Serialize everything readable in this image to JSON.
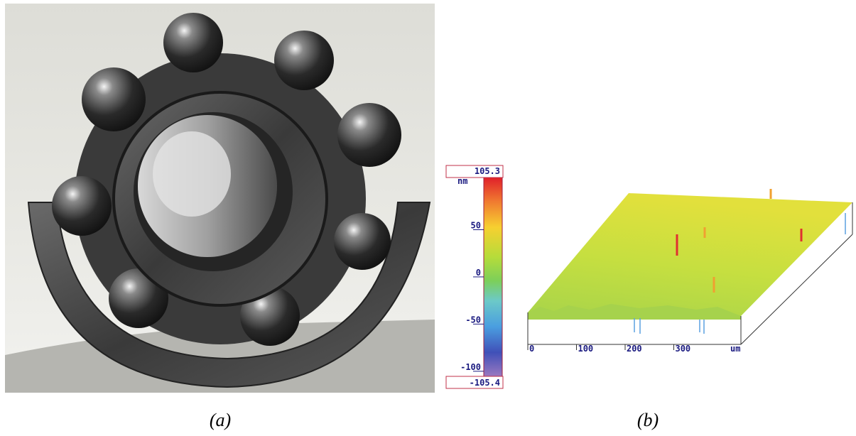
{
  "panel_a": {
    "caption": "(a)"
  },
  "panel_b": {
    "caption": "(b)",
    "colorbar": {
      "max": 105.3,
      "min": -105.4,
      "unit": "nm",
      "ticks": [
        50,
        0,
        -50,
        -100
      ]
    },
    "x_axis": {
      "xlim": [
        0,
        438
      ],
      "ticks": [
        0,
        100,
        200,
        300
      ],
      "unit": "um"
    }
  }
}
